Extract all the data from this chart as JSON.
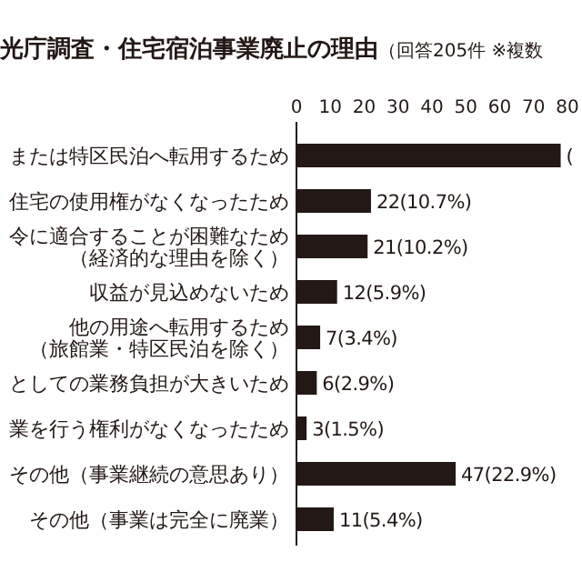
{
  "chart_data": {
    "type": "bar",
    "orientation": "horizontal",
    "title": "光庁調査・住宅宿泊事業廃止の理由",
    "subtitle": "（回答205件 ※複数",
    "categories": [
      "または特区民泊へ転用するため",
      "住宅の使用権がなくなったため",
      "令に適合することが困難なため（経済的な理由を除く）",
      "収益が見込めないため",
      "他の用途へ転用するため（旅館業・特区民泊を除く）",
      "としての業務負担が大きいため",
      "業を行う権利がなくなったため",
      "その他（事業継続の意思あり）",
      "その他（事業は完全に廃業）"
    ],
    "values": [
      78,
      22,
      21,
      12,
      7,
      6,
      3,
      47,
      11
    ],
    "value_labels": [
      "(",
      "22(10.7%)",
      "21(10.2%)",
      "12(5.9%)",
      "7(3.4%)",
      "6(2.9%)",
      "3(1.5%)",
      "47(22.9%)",
      "11(5.4%)"
    ],
    "color": "#231815",
    "xlim": [
      0,
      80
    ],
    "xticks": [
      0,
      10,
      20,
      30,
      40,
      50,
      60,
      70,
      80
    ],
    "grid": false
  }
}
